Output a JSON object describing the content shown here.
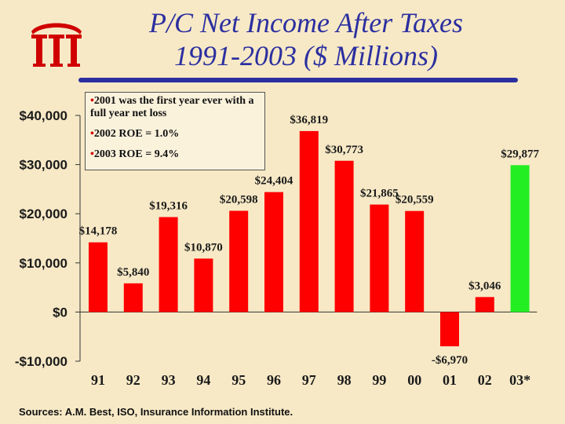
{
  "title_line1": "P/C Net Income After Taxes",
  "title_line2": "1991-2003 ($ Millions)",
  "notes": [
    "2001 was the first year ever with a full year net loss",
    "2002 ROE = 1.0%",
    "2003 ROE = 9.4%"
  ],
  "source": "Sources: A.M. Best, ISO, Insurance Information Institute.",
  "colors": {
    "bar": "#ff0000",
    "highlight_bar": "#22ee22",
    "title": "#2b2fa0",
    "logo": "#d00000",
    "background": "#f7e9c6"
  },
  "chart_data": {
    "type": "bar",
    "categories": [
      "91",
      "92",
      "93",
      "94",
      "95",
      "96",
      "97",
      "98",
      "99",
      "00",
      "01",
      "02",
      "03*"
    ],
    "values": [
      14178,
      5840,
      19316,
      10870,
      20598,
      24404,
      36819,
      30773,
      21865,
      20559,
      -6970,
      3046,
      29877
    ],
    "data_labels": [
      "$14,178",
      "$5,840",
      "$19,316",
      "$10,870",
      "$20,598",
      "$24,404",
      "$36,819",
      "$30,773",
      "$21,865",
      "$20,559",
      "-$6,970",
      "$3,046",
      "$29,877"
    ],
    "highlight_index": 12,
    "yticks": [
      -10000,
      0,
      10000,
      20000,
      30000,
      40000
    ],
    "ytick_labels": [
      "-$10,000",
      "$0",
      "$10,000",
      "$20,000",
      "$30,000",
      "$40,000"
    ],
    "ylim": [
      -10000,
      40000
    ],
    "grid": false
  }
}
